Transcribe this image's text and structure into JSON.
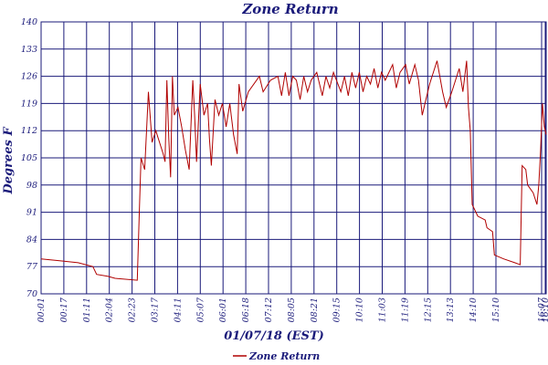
{
  "chart_data": {
    "type": "line",
    "title": "Zone Return",
    "xlabel": "01/07/18 (EST)",
    "ylabel": "Degrees F",
    "ylim": [
      70,
      140
    ],
    "yticks": [
      "70",
      "77",
      "84",
      "91",
      "98",
      "105",
      "112",
      "119",
      "126",
      "133",
      "140"
    ],
    "xticks": [
      "00:01",
      "00:17",
      "01:11",
      "02:04",
      "02:23",
      "03:17",
      "04:11",
      "05:07",
      "06:01",
      "06:18",
      "07:12",
      "08:05",
      "08:21",
      "09:15",
      "10:10",
      "11:03",
      "11:19",
      "12:15",
      "13:13",
      "14:10",
      "15:10",
      "16:07",
      "16:10"
    ],
    "grid": true,
    "legend_position": "bottom-center",
    "series": [
      {
        "name": "Zone Return",
        "color": "#b00000",
        "points": [
          [
            0,
            79
          ],
          [
            0.5,
            78.5
          ],
          [
            1,
            78
          ],
          [
            1.4,
            77
          ],
          [
            1.5,
            75
          ],
          [
            1.8,
            74.5
          ],
          [
            2,
            74
          ],
          [
            2.6,
            73.5
          ],
          [
            2.65,
            90
          ],
          [
            2.7,
            105
          ],
          [
            2.8,
            102
          ],
          [
            2.9,
            122
          ],
          [
            3,
            109
          ],
          [
            3.1,
            112
          ],
          [
            3.3,
            106
          ],
          [
            3.35,
            104
          ],
          [
            3.4,
            125
          ],
          [
            3.45,
            110
          ],
          [
            3.5,
            100
          ],
          [
            3.55,
            126
          ],
          [
            3.6,
            116
          ],
          [
            3.7,
            118
          ],
          [
            3.8,
            113
          ],
          [
            3.9,
            107
          ],
          [
            4,
            102
          ],
          [
            4.1,
            125
          ],
          [
            4.15,
            116
          ],
          [
            4.2,
            104
          ],
          [
            4.3,
            124
          ],
          [
            4.4,
            116
          ],
          [
            4.5,
            119
          ],
          [
            4.55,
            110
          ],
          [
            4.6,
            103
          ],
          [
            4.7,
            120
          ],
          [
            4.8,
            116
          ],
          [
            4.9,
            119
          ],
          [
            5,
            113
          ],
          [
            5.1,
            119
          ],
          [
            5.2,
            111
          ],
          [
            5.3,
            106
          ],
          [
            5.35,
            124
          ],
          [
            5.45,
            117
          ],
          [
            5.6,
            122
          ],
          [
            5.9,
            126
          ],
          [
            6.0,
            122
          ],
          [
            6.2,
            125
          ],
          [
            6.4,
            126
          ],
          [
            6.5,
            121
          ],
          [
            6.6,
            127
          ],
          [
            6.7,
            121
          ],
          [
            6.8,
            126
          ],
          [
            6.9,
            125
          ],
          [
            7.0,
            120
          ],
          [
            7.1,
            126
          ],
          [
            7.2,
            122
          ],
          [
            7.3,
            125
          ],
          [
            7.45,
            127
          ],
          [
            7.6,
            121
          ],
          [
            7.7,
            126
          ],
          [
            7.8,
            123
          ],
          [
            7.9,
            127
          ],
          [
            8.1,
            122
          ],
          [
            8.2,
            126
          ],
          [
            8.3,
            121
          ],
          [
            8.4,
            127
          ],
          [
            8.5,
            123
          ],
          [
            8.6,
            127
          ],
          [
            8.7,
            122
          ],
          [
            8.8,
            126
          ],
          [
            8.9,
            124
          ],
          [
            9.0,
            128
          ],
          [
            9.1,
            123
          ],
          [
            9.2,
            127
          ],
          [
            9.3,
            125
          ],
          [
            9.5,
            129
          ],
          [
            9.6,
            123
          ],
          [
            9.7,
            127
          ],
          [
            9.85,
            129
          ],
          [
            9.95,
            124
          ],
          [
            10.1,
            129
          ],
          [
            10.2,
            125
          ],
          [
            10.3,
            116
          ],
          [
            10.4,
            120
          ],
          [
            10.5,
            124
          ],
          [
            10.7,
            130
          ],
          [
            10.85,
            122
          ],
          [
            10.95,
            118
          ],
          [
            11.1,
            122
          ],
          [
            11.3,
            128
          ],
          [
            11.4,
            122
          ],
          [
            11.5,
            130
          ],
          [
            11.55,
            118
          ],
          [
            11.6,
            112
          ],
          [
            11.65,
            93
          ],
          [
            11.8,
            90
          ],
          [
            12.0,
            89
          ],
          [
            12.05,
            87
          ],
          [
            12.2,
            86
          ],
          [
            12.25,
            80
          ],
          [
            12.5,
            79
          ],
          [
            12.8,
            78
          ],
          [
            12.95,
            77.5
          ],
          [
            13.0,
            103
          ],
          [
            13.1,
            102
          ],
          [
            13.15,
            98
          ],
          [
            13.3,
            96
          ],
          [
            13.4,
            93
          ],
          [
            13.45,
            98
          ],
          [
            13.5,
            107
          ],
          [
            13.55,
            119
          ],
          [
            13.6,
            113
          ],
          [
            13.65,
            111
          ]
        ]
      }
    ]
  }
}
